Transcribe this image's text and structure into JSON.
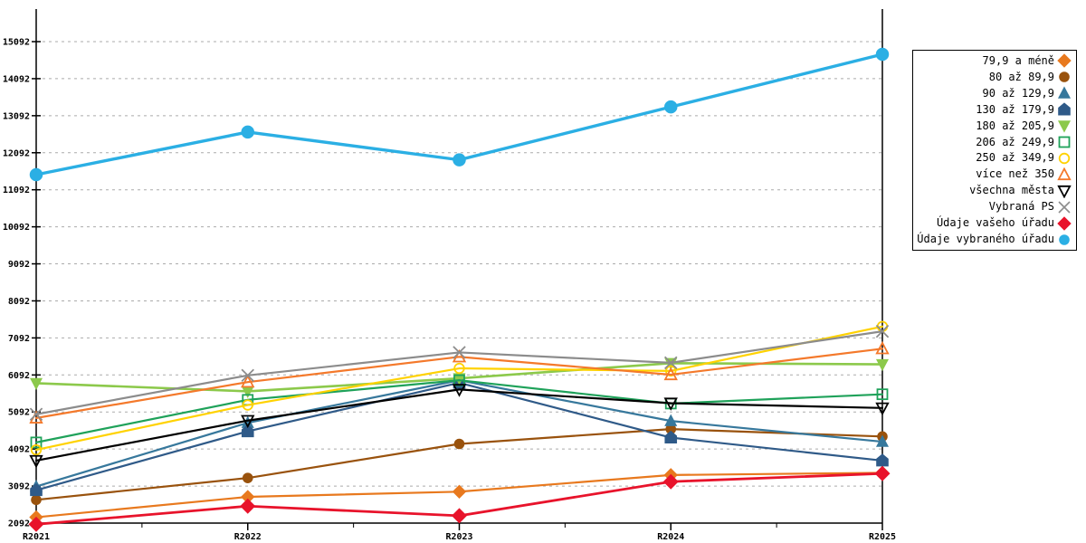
{
  "chart_data": {
    "type": "line",
    "title": "",
    "xlabel": "",
    "ylabel": "",
    "categories": [
      "R2021",
      "R2022",
      "R2023",
      "R2024",
      "R2025"
    ],
    "ylim": [
      2092,
      15092
    ],
    "yticks": [
      2092,
      3092,
      4092,
      5092,
      6092,
      7092,
      8092,
      9092,
      10092,
      11092,
      12092,
      13092,
      14092,
      15092
    ],
    "grid": true,
    "gridline_color": "#ABABAB",
    "axis_color": "#000000",
    "legend_position": "outside-top-right",
    "series": [
      {
        "name": "79,9 a méně",
        "color": "#E8791E",
        "marker": "diamond",
        "style": "filled",
        "lw": 2.2,
        "msize": 1.0,
        "values": [
          2250,
          2800,
          2940,
          3390,
          3450
        ]
      },
      {
        "name": "80 až 89,9",
        "color": "#99520D",
        "marker": "circle",
        "style": "filled",
        "lw": 2.2,
        "msize": 1.0,
        "values": [
          2720,
          3310,
          4230,
          4630,
          4430
        ]
      },
      {
        "name": "90 až 129,9",
        "color": "#37789C",
        "marker": "triangle-up",
        "style": "filled",
        "lw": 2.2,
        "msize": 1.0,
        "values": [
          3080,
          4800,
          5950,
          4850,
          4290
        ]
      },
      {
        "name": "130 až 179,9",
        "color": "#2F5A88",
        "marker": "pentagon",
        "style": "filled",
        "lw": 2.2,
        "msize": 1.0,
        "values": [
          2980,
          4570,
          5880,
          4400,
          3780
        ]
      },
      {
        "name": "180 až 205,9",
        "color": "#8CC94B",
        "marker": "triangle-down",
        "style": "filled",
        "lw": 2.6,
        "msize": 1.0,
        "values": [
          5870,
          5650,
          6000,
          6410,
          6380
        ]
      },
      {
        "name": "206 až 249,9",
        "color": "#1FA25A",
        "marker": "square",
        "style": "outline",
        "lw": 2.2,
        "msize": 1.0,
        "values": [
          4270,
          5420,
          5950,
          5320,
          5570
        ]
      },
      {
        "name": "250 až 349,9",
        "color": "#FFD200",
        "marker": "circle",
        "style": "outline",
        "lw": 2.2,
        "msize": 1.0,
        "values": [
          4070,
          5280,
          6270,
          6200,
          7400
        ]
      },
      {
        "name": "více než 350",
        "color": "#F4792B",
        "marker": "triangle-up",
        "style": "outline",
        "lw": 2.2,
        "msize": 1.0,
        "values": [
          4930,
          5900,
          6580,
          6100,
          6800
        ]
      },
      {
        "name": "všechna města",
        "color": "#000000",
        "marker": "triangle-down",
        "style": "outline",
        "lw": 2.2,
        "msize": 1.0,
        "values": [
          3780,
          4860,
          5700,
          5330,
          5200
        ]
      },
      {
        "name": "Vybraná PS",
        "color": "#8C8C8C",
        "marker": "x",
        "style": "outline",
        "lw": 2.2,
        "msize": 1.1,
        "values": [
          5030,
          6080,
          6700,
          6420,
          7270
        ]
      },
      {
        "name": "Údaje vašeho úřadu",
        "color": "#E8132B",
        "marker": "diamond",
        "style": "filled",
        "lw": 2.8,
        "msize": 1.1,
        "values": [
          2060,
          2550,
          2290,
          3210,
          3430
        ]
      },
      {
        "name": "Údaje vybraného úřadu",
        "color": "#2BAFE4",
        "marker": "circle",
        "style": "filled",
        "lw": 3.4,
        "msize": 1.25,
        "values": [
          11500,
          12650,
          11900,
          13330,
          14750
        ]
      }
    ]
  }
}
